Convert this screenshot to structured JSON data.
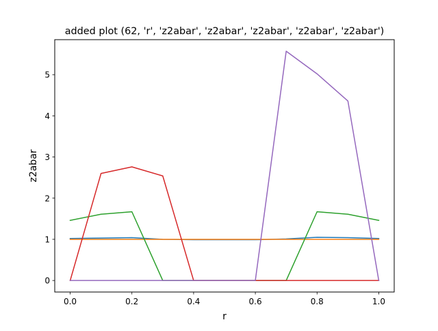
{
  "chart_data": {
    "type": "line",
    "title": "added plot (62, 'r', 'z2abar', 'z2abar', 'z2abar', 'z2abar', 'z2abar')",
    "xlabel": "r",
    "ylabel": "z2abar",
    "xlim": [
      -0.05,
      1.05
    ],
    "ylim": [
      -0.28,
      5.85
    ],
    "xticks": [
      0.0,
      0.2,
      0.4,
      0.6,
      0.8,
      1.0
    ],
    "xtick_labels": [
      "0.0",
      "0.2",
      "0.4",
      "0.6",
      "0.8",
      "1.0"
    ],
    "yticks": [
      0,
      1,
      2,
      3,
      4,
      5
    ],
    "ytick_labels": [
      "0",
      "1",
      "2",
      "3",
      "4",
      "5"
    ],
    "grid": false,
    "x": [
      0.0,
      0.1,
      0.2,
      0.3,
      0.4,
      0.5,
      0.6,
      0.7,
      0.8,
      0.9,
      1.0
    ],
    "series": [
      {
        "color": "#1f77b4",
        "values": [
          1.02,
          1.03,
          1.04,
          1.0,
          0.99,
          0.99,
          0.99,
          1.01,
          1.05,
          1.04,
          1.02
        ]
      },
      {
        "color": "#ff7f0e",
        "values": [
          1.0,
          1.0,
          1.0,
          1.0,
          1.0,
          1.0,
          1.0,
          1.0,
          1.0,
          1.0,
          1.0
        ]
      },
      {
        "color": "#2ca02c",
        "values": [
          1.46,
          1.61,
          1.67,
          0.0,
          0.0,
          0.0,
          0.0,
          0.0,
          1.67,
          1.61,
          1.46
        ]
      },
      {
        "color": "#d62728",
        "values": [
          0.0,
          2.6,
          2.76,
          2.54,
          0.0,
          0.0,
          0.0,
          0.0,
          0.0,
          0.0,
          0.0
        ]
      },
      {
        "color": "#9467bd",
        "values": [
          0.0,
          0.0,
          0.0,
          0.0,
          0.0,
          0.0,
          0.0,
          5.57,
          5.02,
          4.36,
          0.0
        ]
      }
    ]
  }
}
